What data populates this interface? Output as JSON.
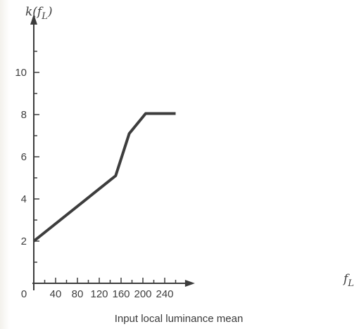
{
  "chart_data": {
    "type": "line",
    "ylabel": "k(f",
    "ylabel_sub": "L",
    "ylabel_close": ")",
    "xlabel": "f",
    "xlabel_sub": "L",
    "caption": "Input local luminance mean",
    "origin_label": "0",
    "x_ticks": [
      40,
      80,
      120,
      160,
      200,
      240
    ],
    "x_minor_ticks": [
      20,
      60,
      100,
      140,
      180,
      220,
      260
    ],
    "y_ticks": [
      2,
      4,
      6,
      8,
      10
    ],
    "y_minor_ticks": [
      1,
      3,
      5,
      7,
      9,
      11
    ],
    "xlim": [
      0,
      285
    ],
    "ylim": [
      0,
      12.5
    ],
    "grid": false,
    "series": [
      {
        "points": [
          [
            0,
            2
          ],
          [
            150,
            5.1
          ],
          [
            175,
            7.1
          ],
          [
            205,
            8.05
          ],
          [
            260,
            8.05
          ]
        ]
      }
    ],
    "colors": {
      "line": "#3d3d3d",
      "axis": "#3c3c3c",
      "text": "#3e3e3e"
    }
  }
}
